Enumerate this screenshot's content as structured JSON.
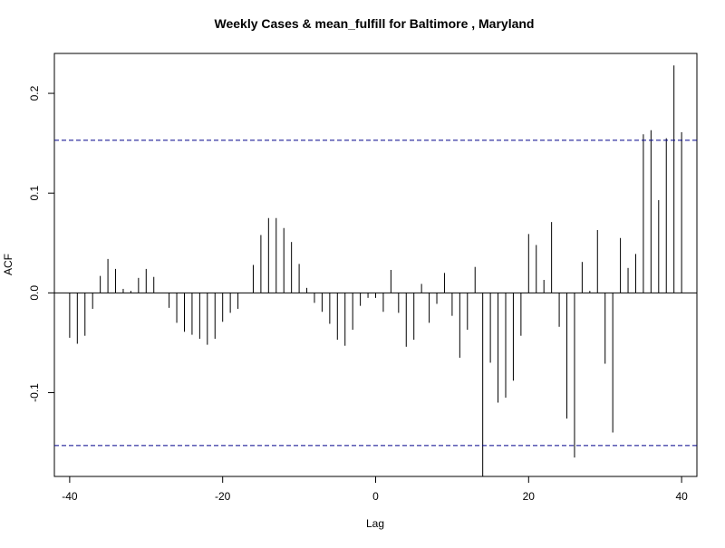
{
  "chart_data": {
    "type": "bar",
    "title": "Weekly Cases & mean_fulfill for Baltimore , Maryland",
    "xlabel": "Lag",
    "ylabel": "ACF",
    "xlim": [
      -42,
      42
    ],
    "ylim": [
      -0.184,
      0.24
    ],
    "x_ticks": [
      -40,
      -20,
      0,
      20,
      40
    ],
    "x_tick_labels": [
      "-40",
      "-20",
      "0",
      "20",
      "40"
    ],
    "y_ticks": [
      -0.1,
      0.0,
      0.1,
      0.2
    ],
    "y_tick_labels": [
      "-0.1",
      "0.0",
      "0.1",
      "0.2"
    ],
    "confidence_band": [
      -0.153,
      0.153
    ],
    "grid": false,
    "colors": {
      "bars": "#000000",
      "confidence_lines": "#00008b",
      "zero_line": "#000000"
    },
    "lags": [
      -40,
      -39,
      -38,
      -37,
      -36,
      -35,
      -34,
      -33,
      -32,
      -31,
      -30,
      -29,
      -28,
      -27,
      -26,
      -25,
      -24,
      -23,
      -22,
      -21,
      -20,
      -19,
      -18,
      -17,
      -16,
      -15,
      -14,
      -13,
      -12,
      -11,
      -10,
      -9,
      -8,
      -7,
      -6,
      -5,
      -4,
      -3,
      -2,
      -1,
      0,
      1,
      2,
      3,
      4,
      5,
      6,
      7,
      8,
      9,
      10,
      11,
      12,
      13,
      14,
      15,
      16,
      17,
      18,
      19,
      20,
      21,
      22,
      23,
      24,
      25,
      26,
      27,
      28,
      29,
      30,
      31,
      32,
      33,
      34,
      35,
      36,
      37,
      38,
      39,
      40
    ],
    "values": [
      -0.045,
      -0.051,
      -0.043,
      -0.016,
      0.017,
      0.034,
      0.024,
      0.004,
      0.002,
      0.015,
      0.024,
      0.016,
      0.0,
      -0.015,
      -0.03,
      -0.039,
      -0.042,
      -0.046,
      -0.052,
      -0.046,
      -0.029,
      -0.02,
      -0.016,
      0.0,
      0.028,
      0.058,
      0.075,
      0.075,
      0.065,
      0.051,
      0.029,
      0.005,
      -0.01,
      -0.019,
      -0.031,
      -0.047,
      -0.053,
      -0.037,
      -0.013,
      -0.005,
      -0.005,
      -0.019,
      0.023,
      -0.02,
      -0.054,
      -0.047,
      0.009,
      -0.03,
      -0.011,
      0.02,
      -0.023,
      -0.065,
      -0.037,
      0.026,
      -0.184,
      -0.07,
      -0.11,
      -0.105,
      -0.088,
      -0.043,
      0.059,
      0.048,
      0.013,
      0.071,
      -0.034,
      -0.126,
      -0.165,
      0.031,
      0.002,
      0.063,
      -0.071,
      -0.14,
      0.055,
      0.025,
      0.039,
      0.159,
      0.163,
      0.093,
      0.155,
      0.228,
      0.161
    ]
  }
}
